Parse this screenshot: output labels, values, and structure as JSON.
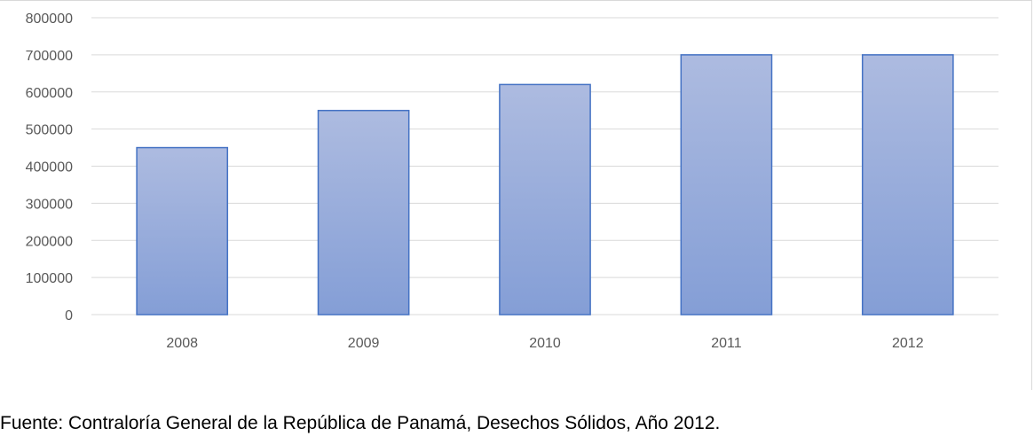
{
  "chart_data": {
    "type": "bar",
    "title": "",
    "xlabel": "",
    "ylabel": "",
    "categories": [
      "2008",
      "2009",
      "2010",
      "2011",
      "2012"
    ],
    "values": [
      450000,
      550000,
      620000,
      700000,
      700000
    ],
    "ylim": [
      0,
      800000
    ],
    "yticks": [
      "0",
      "100000",
      "200000",
      "300000",
      "400000",
      "500000",
      "600000",
      "700000",
      "800000"
    ],
    "grid": true,
    "legend": "none",
    "colors": {
      "bar_top": "#adbbe0",
      "bar_bottom": "#849ed6",
      "bar_edge": "#4472c4",
      "grid": "#d9d9d9",
      "tick_text": "#595959"
    }
  },
  "source_note": "Fuente: Contraloría General de la República de Panamá, Desechos Sólidos, Año 2012."
}
